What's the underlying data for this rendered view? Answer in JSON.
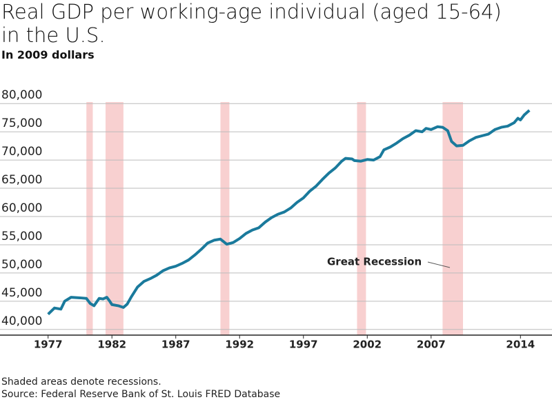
{
  "chart_data": {
    "type": "line",
    "title": "Real GDP per working-age individual (aged 15-64) in the U.S.",
    "subtitle": "In 2009 dollars",
    "notes": [
      "Shaded areas denote recessions.",
      "Source: Federal Reserve Bank of St. Louis FRED Database"
    ],
    "annotation": "Great Recession",
    "x": [
      1977.0,
      1977.5,
      1978.0,
      1978.3,
      1978.8,
      1979.5,
      1980.0,
      1980.3,
      1980.6,
      1981.0,
      1981.3,
      1981.6,
      1981.8,
      1982.0,
      1982.5,
      1982.9,
      1983.2,
      1983.5,
      1984.0,
      1984.5,
      1985.0,
      1985.5,
      1986.0,
      1986.5,
      1987.0,
      1987.5,
      1988.0,
      1988.5,
      1989.0,
      1989.5,
      1990.0,
      1990.5,
      1991.0,
      1991.5,
      1992.0,
      1992.5,
      1993.0,
      1993.5,
      1994.0,
      1994.5,
      1995.0,
      1995.5,
      1996.0,
      1996.5,
      1997.0,
      1997.5,
      1998.0,
      1998.5,
      1999.0,
      1999.5,
      2000.0,
      2000.3,
      2000.8,
      2001.0,
      2001.5,
      2002.0,
      2002.5,
      2003.0,
      2003.3,
      2003.8,
      2004.3,
      2004.8,
      2005.3,
      2005.8,
      2006.3,
      2006.6,
      2007.0,
      2007.5,
      2007.9,
      2008.3,
      2008.6,
      2009.0,
      2009.5,
      2010.0,
      2010.5,
      2011.0,
      2011.5,
      2012.0,
      2012.5,
      2013.0,
      2013.5,
      2013.8,
      2014.0,
      2014.3,
      2014.7
    ],
    "series": [
      {
        "name": "Real GDP per working-age individual",
        "color": "#1a7a9c",
        "values": [
          42700,
          43800,
          43600,
          45000,
          45700,
          45600,
          45500,
          44600,
          44200,
          45500,
          45400,
          45700,
          45100,
          44400,
          44200,
          43900,
          44500,
          45700,
          47500,
          48500,
          49000,
          49600,
          50400,
          50900,
          51200,
          51700,
          52300,
          53200,
          54200,
          55300,
          55800,
          56000,
          55100,
          55400,
          56100,
          57000,
          57600,
          58000,
          59000,
          59800,
          60400,
          60800,
          61500,
          62500,
          63300,
          64500,
          65400,
          66600,
          67700,
          68600,
          69800,
          70300,
          70200,
          69900,
          69800,
          70100,
          70000,
          70600,
          71800,
          72300,
          73000,
          73800,
          74400,
          75200,
          75000,
          75600,
          75400,
          75900,
          75800,
          75200,
          73300,
          72500,
          72600,
          73400,
          74000,
          74300,
          74600,
          75400,
          75800,
          76000,
          76600,
          77400,
          77100,
          78000,
          78800
        ]
      }
    ],
    "recessions": [
      [
        1980.0,
        1980.5
      ],
      [
        1981.5,
        1982.9
      ],
      [
        1990.5,
        1991.2
      ],
      [
        2001.2,
        2001.9
      ],
      [
        2007.9,
        2009.5
      ]
    ],
    "recession_color": "#f8d0d0",
    "xlim": [
      1976.8,
      2016.2
    ],
    "xticks": [
      1977,
      1982,
      1987,
      1992,
      1997,
      2002,
      2007,
      2014
    ],
    "ylim": [
      39000,
      81000
    ],
    "yticks": [
      {
        "value": 40000,
        "label": "40,000"
      },
      {
        "value": 45000,
        "label": "45,000"
      },
      {
        "value": 50000,
        "label": "50,000"
      },
      {
        "value": 55000,
        "label": "55,000"
      },
      {
        "value": 60000,
        "label": "60,000"
      },
      {
        "value": 65000,
        "label": "65,000"
      },
      {
        "value": 70000,
        "label": "70,000"
      },
      {
        "value": 75000,
        "label": "75,000"
      },
      {
        "value": 80000,
        "label": "80,000"
      }
    ],
    "grid": true
  }
}
